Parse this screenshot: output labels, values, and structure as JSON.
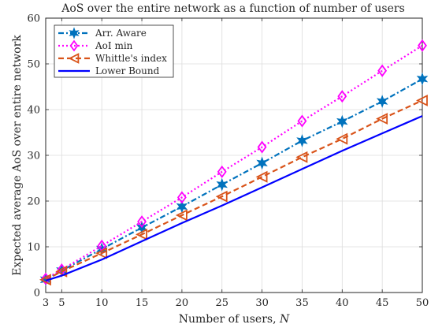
{
  "chart_data": {
    "type": "line",
    "title": "AoS over the entire network as a function of number of users",
    "xlabel": "Number of users, N",
    "ylabel": "Expected average AoS over entire network",
    "x": [
      3,
      5,
      10,
      15,
      20,
      25,
      30,
      35,
      40,
      45,
      50
    ],
    "xticks": [
      3,
      5,
      10,
      15,
      20,
      25,
      30,
      35,
      40,
      45,
      50
    ],
    "yticks": [
      0,
      10,
      20,
      30,
      40,
      50,
      60
    ],
    "xlim": [
      3,
      50
    ],
    "ylim": [
      0,
      60
    ],
    "grid": true,
    "legend_position": "top-left",
    "series": [
      {
        "name": "Arr. Aware",
        "color": "#0072BD",
        "line_style": "dash-dot",
        "marker": "hexagram",
        "values": [
          2.8,
          4.8,
          9.5,
          14.2,
          18.8,
          23.6,
          28.3,
          33.2,
          37.4,
          41.8,
          46.7
        ]
      },
      {
        "name": "AoI min",
        "color": "#FF00FF",
        "line_style": "dotted",
        "marker": "diamond",
        "values": [
          3.0,
          5.0,
          10.2,
          15.5,
          20.8,
          26.4,
          31.8,
          37.5,
          42.9,
          48.5,
          54.0
        ]
      },
      {
        "name": "Whittle's index",
        "color": "#D95319",
        "line_style": "dashed",
        "marker": "triangle-left",
        "values": [
          2.8,
          4.6,
          8.6,
          12.7,
          16.9,
          21.0,
          25.3,
          29.6,
          33.6,
          38.0,
          42.0
        ]
      },
      {
        "name": "Lower Bound",
        "color": "#0000FF",
        "line_style": "solid",
        "marker": "none",
        "values": [
          2.6,
          3.7,
          7.2,
          11.2,
          15.2,
          19.0,
          23.0,
          27.0,
          31.0,
          34.8,
          38.6
        ]
      }
    ]
  }
}
